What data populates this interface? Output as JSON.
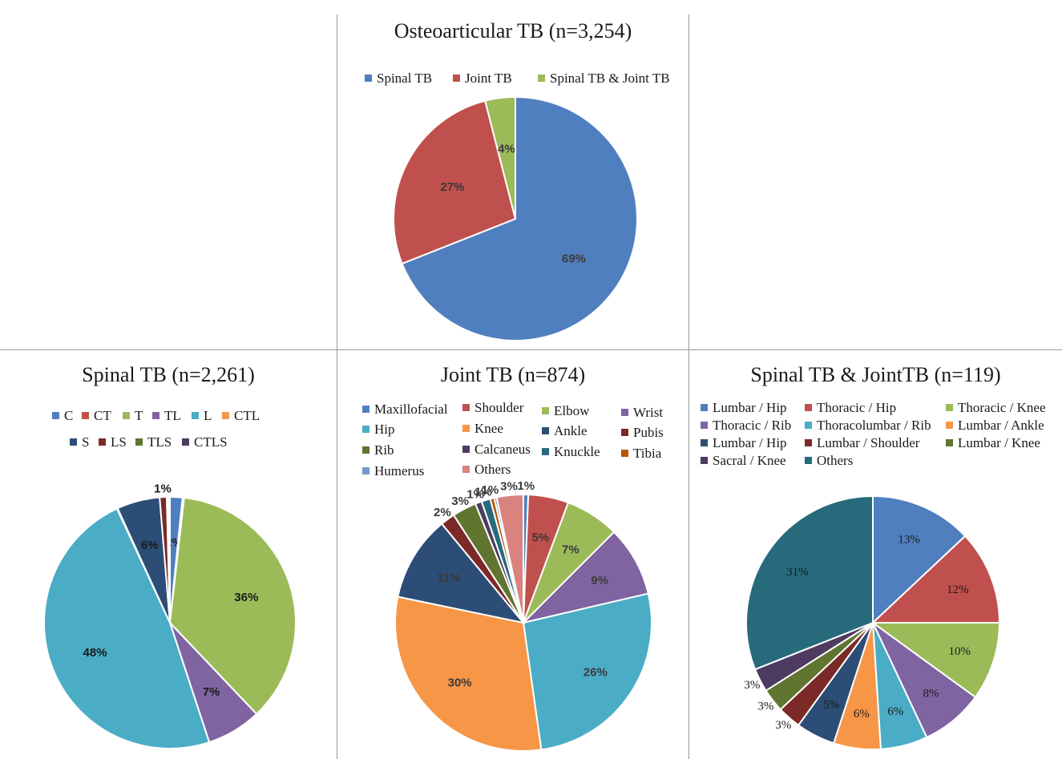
{
  "colors": {
    "blue": "#4f7fbe",
    "red": "#c0504d",
    "green": "#9bbb59",
    "purple": "#8064a2",
    "teal": "#4bacc6",
    "orange": "#f79646",
    "navy": "#2c4d75",
    "darkred": "#7b2a28",
    "olive": "#5f7530",
    "darkpurple": "#4d3b62",
    "darkteal": "#276a7c",
    "darkorange": "#b65708",
    "lightblue": "#729aca",
    "pink": "#d9827e",
    "line": "#9a9a9a"
  },
  "chart_data": [
    {
      "id": "osteo",
      "type": "pie",
      "title": "Osteoarticular TB (n=3,254)",
      "series": [
        {
          "name": "Spinal TB",
          "value": 69,
          "label": "69%",
          "color": "#4f7fbe"
        },
        {
          "name": "Joint TB",
          "value": 27,
          "label": "27%",
          "color": "#c0504d"
        },
        {
          "name": "Spinal TB & Joint TB",
          "value": 4,
          "label": "4%",
          "color": "#9bbb59"
        }
      ]
    },
    {
      "id": "spinal",
      "type": "pie",
      "title": "Spinal TB (n=2,261)",
      "series": [
        {
          "name": "C",
          "value": 1.6,
          "label": "2%",
          "color": "#4f7fbe"
        },
        {
          "name": "CT",
          "value": 0.2,
          "label": "",
          "color": "#c0504d"
        },
        {
          "name": "T",
          "value": 36,
          "label": "36%",
          "color": "#9bbb59"
        },
        {
          "name": "TL",
          "value": 7,
          "label": "7%",
          "color": "#8064a2"
        },
        {
          "name": "L",
          "value": 48,
          "label": "48%",
          "color": "#4bacc6"
        },
        {
          "name": "CTL",
          "value": 0.1,
          "label": "",
          "color": "#f79646"
        },
        {
          "name": "S",
          "value": 5.5,
          "label": "6%",
          "color": "#2c4d75"
        },
        {
          "name": "LS",
          "value": 0.9,
          "label": "1%",
          "color": "#7b2a28"
        },
        {
          "name": "TLS",
          "value": 0.2,
          "label": "",
          "color": "#5f7530"
        },
        {
          "name": "CTLS",
          "value": 0.2,
          "label": "",
          "color": "#4d3b62"
        }
      ]
    },
    {
      "id": "joint",
      "type": "pie",
      "title": "Joint TB (n=874)",
      "series": [
        {
          "name": "Maxillofacial",
          "value": 0.6,
          "label": "1%",
          "color": "#4f7fbe"
        },
        {
          "name": "Shoulder",
          "value": 5,
          "label": "5%",
          "color": "#c0504d"
        },
        {
          "name": "Elbow",
          "value": 6.7,
          "label": "7%",
          "color": "#9bbb59"
        },
        {
          "name": "Wrist",
          "value": 8.7,
          "label": "9%",
          "color": "#8064a2"
        },
        {
          "name": "Hip",
          "value": 26,
          "label": "26%",
          "color": "#4bacc6"
        },
        {
          "name": "Knee",
          "value": 30,
          "label": "30%",
          "color": "#f79646"
        },
        {
          "name": "Ankle",
          "value": 10.6,
          "label": "11%",
          "color": "#2c4d75"
        },
        {
          "name": "Pubis",
          "value": 1.8,
          "label": "2%",
          "color": "#7b2a28"
        },
        {
          "name": "Rib",
          "value": 3,
          "label": "3%",
          "color": "#5f7530"
        },
        {
          "name": "Calcaneus",
          "value": 0.8,
          "label": "1%",
          "color": "#4d3b62"
        },
        {
          "name": "Knuckle",
          "value": 1.1,
          "label": "1%",
          "color": "#276a7c"
        },
        {
          "name": "Tibia",
          "value": 0.5,
          "label": "1%",
          "color": "#b65708"
        },
        {
          "name": "Humerus",
          "value": 0.3,
          "label": "",
          "color": "#729aca"
        },
        {
          "name": "Others",
          "value": 3.3,
          "label": "3%",
          "color": "#d9827e"
        }
      ]
    },
    {
      "id": "both",
      "type": "pie",
      "title": "Spinal TB & JointTB (n=119)",
      "series": [
        {
          "name": "Lumbar / Hip",
          "value": 13,
          "label": "13%",
          "color": "#4f7fbe"
        },
        {
          "name": "Thoracic / Hip",
          "value": 12,
          "label": "12%",
          "color": "#c0504d"
        },
        {
          "name": "Thoracic / Knee",
          "value": 10,
          "label": "10%",
          "color": "#9bbb59"
        },
        {
          "name": "Thoracic / Rib",
          "value": 8,
          "label": "8%",
          "color": "#8064a2"
        },
        {
          "name": "Thoracolumbar / Rib",
          "value": 6,
          "label": "6%",
          "color": "#4bacc6"
        },
        {
          "name": "Lumbar / Ankle",
          "value": 6,
          "label": "6%",
          "color": "#f79646"
        },
        {
          "name": "Lumbar / Hip",
          "value": 5,
          "label": "5%",
          "color": "#2c4d75"
        },
        {
          "name": "Lumbar / Shoulder",
          "value": 3,
          "label": "3%",
          "color": "#7b2a28"
        },
        {
          "name": "Lumbar / Knee",
          "value": 3,
          "label": "3%",
          "color": "#5f7530"
        },
        {
          "name": "Sacral / Knee",
          "value": 3,
          "label": "3%",
          "color": "#4d3b62"
        },
        {
          "name": "Others",
          "value": 31,
          "label": "31%",
          "color": "#276a7c"
        }
      ]
    }
  ]
}
